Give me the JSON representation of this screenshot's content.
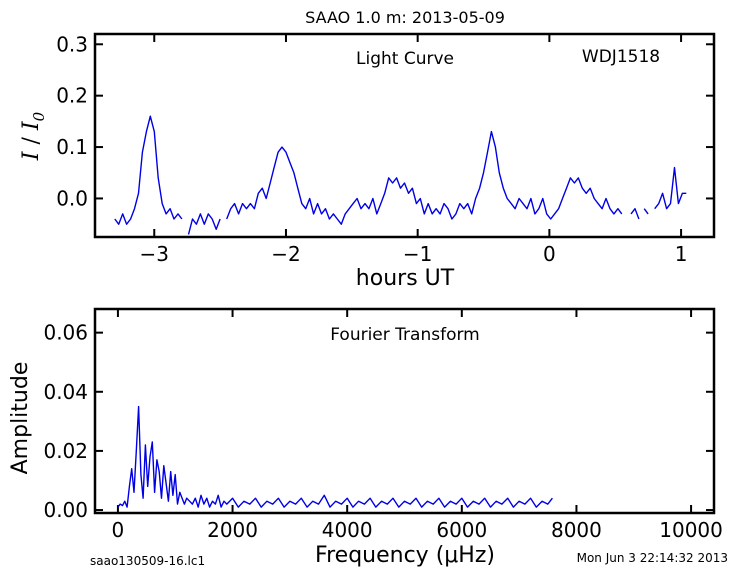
{
  "figure": {
    "title": "SAAO 1.0 m:  2013-05-09",
    "footer_left": "saao130509-16.lc1",
    "footer_right": "Mon Jun  3 22:14:32 2013"
  },
  "chart_data": [
    {
      "type": "line",
      "annotation_left": "Light Curve",
      "annotation_right": "WDJ1518",
      "xlabel": "hours UT",
      "ylabel": "I / I0",
      "xlim": [
        -3.45,
        1.25
      ],
      "ylim": [
        -0.075,
        0.32
      ],
      "xticks": [
        -3,
        -2,
        -1,
        0,
        1
      ],
      "xtick_labels": [
        "−3",
        "−2",
        "−1",
        "0",
        "1"
      ],
      "yticks": [
        0.0,
        0.1,
        0.2,
        0.3
      ],
      "ytick_labels": [
        "0.0",
        "0.1",
        "0.2",
        "0.3"
      ],
      "color": "#0000e6",
      "segments": [
        {
          "x": [
            -3.3,
            -3.27,
            -3.24,
            -3.21,
            -3.18,
            -3.15,
            -3.12,
            -3.09,
            -3.06,
            -3.03,
            -3.0,
            -2.97,
            -2.94,
            -2.91,
            -2.88,
            -2.85,
            -2.82,
            -2.79
          ],
          "y": [
            -0.04,
            -0.05,
            -0.03,
            -0.05,
            -0.04,
            -0.02,
            0.01,
            0.09,
            0.13,
            0.16,
            0.13,
            0.04,
            -0.01,
            -0.03,
            -0.02,
            -0.04,
            -0.03,
            -0.04
          ]
        },
        {
          "x": [
            -2.74,
            -2.71,
            -2.68,
            -2.65,
            -2.62,
            -2.59,
            -2.56,
            -2.53,
            -2.5
          ],
          "y": [
            -0.07,
            -0.04,
            -0.05,
            -0.03,
            -0.05,
            -0.03,
            -0.04,
            -0.06,
            -0.04
          ]
        },
        {
          "x": [
            -2.45,
            -2.42,
            -2.39,
            -2.36,
            -2.33,
            -2.3,
            -2.27,
            -2.24,
            -2.21,
            -2.18,
            -2.15,
            -2.12,
            -2.09,
            -2.06,
            -2.03,
            -2.0,
            -1.97,
            -1.94,
            -1.91,
            -1.88,
            -1.85,
            -1.82,
            -1.79,
            -1.76,
            -1.73,
            -1.7,
            -1.67,
            -1.64,
            -1.61,
            -1.58,
            -1.55,
            -1.52,
            -1.49,
            -1.46,
            -1.43,
            -1.4,
            -1.37,
            -1.34,
            -1.31,
            -1.28,
            -1.25,
            -1.22,
            -1.19,
            -1.16,
            -1.13,
            -1.1,
            -1.07,
            -1.04,
            -1.01,
            -0.98,
            -0.95,
            -0.92,
            -0.89,
            -0.86,
            -0.83,
            -0.8,
            -0.77,
            -0.74,
            -0.71,
            -0.68,
            -0.65,
            -0.62,
            -0.59,
            -0.56,
            -0.53,
            -0.5,
            -0.47,
            -0.44,
            -0.41,
            -0.38,
            -0.35,
            -0.32,
            -0.29,
            -0.26,
            -0.23,
            -0.2,
            -0.17,
            -0.14,
            -0.11,
            -0.08,
            -0.05,
            -0.02,
            0.01,
            0.04,
            0.07,
            0.1,
            0.13,
            0.16,
            0.19,
            0.22,
            0.25,
            0.28,
            0.31,
            0.34,
            0.37,
            0.4,
            0.43,
            0.46,
            0.49,
            0.52,
            0.55
          ],
          "y": [
            -0.04,
            -0.02,
            -0.01,
            -0.03,
            -0.01,
            -0.02,
            -0.01,
            -0.02,
            0.01,
            0.02,
            0.0,
            0.03,
            0.06,
            0.09,
            0.1,
            0.09,
            0.07,
            0.05,
            0.02,
            -0.01,
            -0.02,
            0.0,
            -0.03,
            -0.01,
            -0.03,
            -0.02,
            -0.04,
            -0.03,
            -0.04,
            -0.05,
            -0.03,
            -0.02,
            -0.01,
            0.0,
            -0.02,
            -0.01,
            -0.02,
            0.0,
            -0.03,
            -0.01,
            0.01,
            0.04,
            0.03,
            0.04,
            0.02,
            0.03,
            0.01,
            0.02,
            -0.01,
            0.0,
            -0.03,
            -0.01,
            -0.03,
            -0.02,
            -0.03,
            -0.01,
            -0.02,
            -0.04,
            -0.03,
            -0.01,
            -0.02,
            -0.01,
            -0.03,
            0.0,
            0.02,
            0.05,
            0.09,
            0.13,
            0.1,
            0.05,
            0.02,
            0.0,
            -0.01,
            -0.02,
            0.0,
            -0.01,
            -0.02,
            0.0,
            -0.03,
            -0.02,
            0.0,
            -0.03,
            -0.04,
            -0.03,
            -0.02,
            0.0,
            0.02,
            0.04,
            0.03,
            0.04,
            0.02,
            0.01,
            0.02,
            0.0,
            -0.01,
            -0.02,
            0.0,
            -0.02,
            -0.03,
            -0.02,
            -0.03
          ]
        },
        {
          "x": [
            0.62,
            0.65,
            0.68
          ],
          "y": [
            -0.03,
            -0.02,
            -0.04
          ]
        },
        {
          "x": [
            0.72,
            0.75
          ],
          "y": [
            -0.02,
            -0.03
          ]
        },
        {
          "x": [
            0.8,
            0.83,
            0.86,
            0.89,
            0.92,
            0.95,
            0.98,
            1.01,
            1.04
          ],
          "y": [
            -0.02,
            -0.01,
            0.01,
            -0.02,
            -0.01,
            0.06,
            -0.01,
            0.01,
            0.01
          ]
        }
      ]
    },
    {
      "type": "line",
      "annotation": "Fourier Transform",
      "xlabel": "Frequency (μHz)",
      "ylabel": "Amplitude",
      "xlim": [
        -400,
        10400
      ],
      "ylim": [
        -0.001,
        0.068
      ],
      "xticks": [
        0,
        2000,
        4000,
        6000,
        8000,
        10000
      ],
      "xtick_labels": [
        "0",
        "2000",
        "4000",
        "6000",
        "8000",
        "10000"
      ],
      "yticks": [
        0.0,
        0.02,
        0.04,
        0.06
      ],
      "ytick_labels": [
        "0.00",
        "0.02",
        "0.04",
        "0.06"
      ],
      "color": "#0000e6",
      "x": [
        0,
        40,
        80,
        120,
        160,
        200,
        240,
        280,
        320,
        360,
        400,
        440,
        480,
        520,
        560,
        600,
        640,
        680,
        720,
        760,
        800,
        840,
        880,
        920,
        960,
        1000,
        1040,
        1080,
        1120,
        1160,
        1200,
        1250,
        1300,
        1350,
        1400,
        1450,
        1500,
        1550,
        1600,
        1650,
        1700,
        1750,
        1800,
        1850,
        1900,
        2000,
        2100,
        2200,
        2300,
        2400,
        2500,
        2600,
        2700,
        2800,
        2900,
        3000,
        3100,
        3200,
        3300,
        3400,
        3500,
        3600,
        3700,
        3800,
        3900,
        4000,
        4100,
        4200,
        4300,
        4400,
        4500,
        4600,
        4700,
        4800,
        4900,
        5000,
        5100,
        5200,
        5300,
        5400,
        5500,
        5600,
        5700,
        5800,
        5900,
        6000,
        6100,
        6200,
        6300,
        6400,
        6500,
        6600,
        6700,
        6800,
        6900,
        7000,
        7100,
        7200,
        7300,
        7400,
        7500,
        7580
      ],
      "y": [
        0.001,
        0.002,
        0.0015,
        0.003,
        0.001,
        0.008,
        0.014,
        0.006,
        0.02,
        0.035,
        0.012,
        0.004,
        0.022,
        0.008,
        0.018,
        0.023,
        0.006,
        0.017,
        0.013,
        0.004,
        0.015,
        0.009,
        0.003,
        0.013,
        0.005,
        0.012,
        0.002,
        0.006,
        0.004,
        0.002,
        0.004,
        0.003,
        0.002,
        0.004,
        0.001,
        0.005,
        0.002,
        0.004,
        0.001,
        0.003,
        0.002,
        0.005,
        0.001,
        0.003,
        0.002,
        0.004,
        0.001,
        0.003,
        0.002,
        0.004,
        0.001,
        0.003,
        0.002,
        0.004,
        0.001,
        0.003,
        0.002,
        0.004,
        0.001,
        0.003,
        0.002,
        0.005,
        0.001,
        0.003,
        0.002,
        0.004,
        0.001,
        0.003,
        0.002,
        0.004,
        0.001,
        0.003,
        0.002,
        0.004,
        0.001,
        0.003,
        0.002,
        0.004,
        0.001,
        0.003,
        0.002,
        0.004,
        0.001,
        0.003,
        0.002,
        0.004,
        0.001,
        0.003,
        0.002,
        0.004,
        0.001,
        0.003,
        0.002,
        0.004,
        0.001,
        0.003,
        0.002,
        0.004,
        0.001,
        0.003,
        0.002,
        0.004
      ]
    }
  ]
}
